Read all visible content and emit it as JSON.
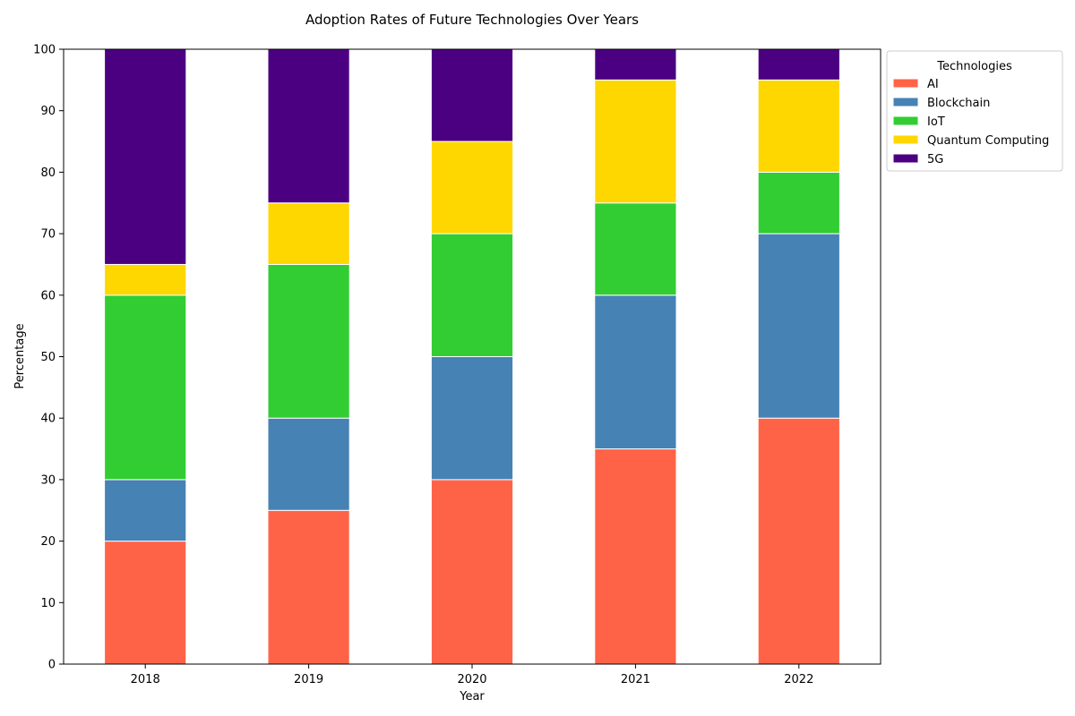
{
  "chart_data": {
    "type": "bar",
    "stacked": true,
    "title": "Adoption Rates of Future Technologies Over Years",
    "xlabel": "Year",
    "ylabel": "Percentage",
    "categories": [
      "2018",
      "2019",
      "2020",
      "2021",
      "2022"
    ],
    "ylim": [
      0,
      100
    ],
    "yticks": [
      0,
      10,
      20,
      30,
      40,
      50,
      60,
      70,
      80,
      90,
      100
    ],
    "grid": false,
    "legend": {
      "title": "Technologies",
      "position": "outside-top-right"
    },
    "series": [
      {
        "name": "AI",
        "color": "#ff6347",
        "values": [
          20,
          25,
          30,
          35,
          40
        ]
      },
      {
        "name": "Blockchain",
        "color": "#4682b4",
        "values": [
          10,
          15,
          20,
          25,
          30
        ]
      },
      {
        "name": "IoT",
        "color": "#32cd32",
        "values": [
          30,
          25,
          20,
          15,
          10
        ]
      },
      {
        "name": "Quantum Computing",
        "color": "#ffd700",
        "values": [
          5,
          10,
          15,
          20,
          15
        ]
      },
      {
        "name": "5G",
        "color": "#4b0082",
        "values": [
          35,
          25,
          15,
          5,
          5
        ]
      }
    ]
  }
}
